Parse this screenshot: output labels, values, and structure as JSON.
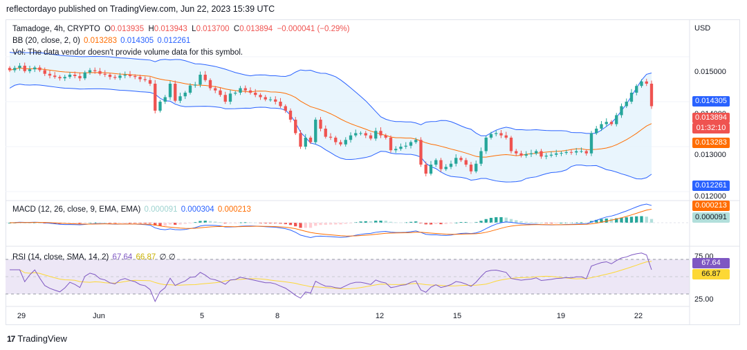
{
  "header": {
    "published": "reflectordayo published on TradingView.com, Jun 22, 2023 15:39 UTC"
  },
  "symbol": {
    "title": "Tamadoge, 4h, CRYPTO",
    "o_label": "O",
    "o": "0.013935",
    "h_label": "H",
    "h": "0.013943",
    "l_label": "L",
    "l": "0.013700",
    "c_label": "C",
    "c": "0.013894",
    "change": "−0.000041 (−0.29%)"
  },
  "bb_legend": {
    "title": "BB (20, close, 2, 0)",
    "basis": "0.013283",
    "upper": "0.014305",
    "lower": "0.012261"
  },
  "vol_legend": {
    "text": "Vol: The data vendor doesn't provide volume data for this symbol."
  },
  "macd_legend": {
    "title": "MACD (12, 26, close, 9, EMA, EMA)",
    "hist": "0.000091",
    "macd": "0.000304",
    "signal": "0.000213"
  },
  "rsi_legend": {
    "title": "RSI (14, close, SMA, 14, 2)",
    "rsi": "67.64",
    "sma": "66.87",
    "extra": "∅ ∅"
  },
  "axis": {
    "currency": "USD",
    "price_labels": [
      "0.015000",
      "0.014000",
      "0.013000",
      "0.012000"
    ],
    "rsi_labels": [
      "75.00",
      "25.00"
    ],
    "x_labels": [
      "29",
      "Jun",
      "5",
      "8",
      "12",
      "15",
      "19",
      "22"
    ]
  },
  "tags": {
    "upper": "0.014305",
    "close": "0.013894",
    "countdown": "01:32:10",
    "basis": "0.013283",
    "lower": "0.012261",
    "macd_signal": "0.000213",
    "macd_hist": "0.000091",
    "rsi": "67.64",
    "rsi_sma": "66.87"
  },
  "colors": {
    "up": "#26a69a",
    "down": "#ef5350",
    "bb_upper": "#2962ff",
    "bb_lower": "#2962ff",
    "bb_basis": "#ff6d00",
    "bb_fill": "#e3f2fd",
    "macd": "#2962ff",
    "signal": "#ff6d00",
    "rsi": "#7e57c2",
    "rsi_sma": "#fdd835",
    "rsi_band": "#ede7f6"
  },
  "chart_data": {
    "type": "candlestick",
    "timeframe": "4h",
    "ylim": [
      0.0118,
      0.0158
    ],
    "price_close": [
      0.0147,
      0.01475,
      0.0148,
      0.01468,
      0.01472,
      0.01476,
      0.0147,
      0.01462,
      0.01458,
      0.01455,
      0.01452,
      0.01455,
      0.0146,
      0.01457,
      0.01452,
      0.01465,
      0.0147,
      0.01468,
      0.01462,
      0.0146,
      0.01455,
      0.01453,
      0.01458,
      0.0146,
      0.01457,
      0.01455,
      0.0145,
      0.01448,
      0.0144,
      0.0138,
      0.014,
      0.0141,
      0.0144,
      0.01402,
      0.01412,
      0.0142,
      0.01436,
      0.01438,
      0.0146,
      0.01448,
      0.0143,
      0.01425,
      0.01415,
      0.014,
      0.01418,
      0.0142,
      0.0143,
      0.01425,
      0.0142,
      0.01415,
      0.0141,
      0.01405,
      0.01405,
      0.014,
      0.0139,
      0.0138,
      0.0136,
      0.0133,
      0.013,
      0.0132,
      0.0131,
      0.0136,
      0.0134,
      0.01322,
      0.0132,
      0.0131,
      0.01305,
      0.01315,
      0.01325,
      0.0133,
      0.0133,
      0.01325,
      0.01318,
      0.01335,
      0.01325,
      0.0132,
      0.01292,
      0.01295,
      0.013,
      0.01302,
      0.0131,
      0.01315,
      0.0126,
      0.0124,
      0.0126,
      0.0127,
      0.0125,
      0.01255,
      0.01262,
      0.01275,
      0.0127,
      0.0126,
      0.01245,
      0.01262,
      0.0129,
      0.0132,
      0.01328,
      0.0133,
      0.01325,
      0.0132,
      0.0129,
      0.01285,
      0.0128,
      0.01283,
      0.01285,
      0.0129,
      0.01278,
      0.0128,
      0.01282,
      0.01285,
      0.01286,
      0.01288,
      0.01287,
      0.0129,
      0.0129,
      0.01285,
      0.0133,
      0.0134,
      0.0135,
      0.01355,
      0.0135,
      0.0137,
      0.0139,
      0.014,
      0.0142,
      0.01435,
      0.01445,
      0.0144,
      0.0139
    ],
    "bb": {
      "basis_last": 0.013283,
      "upper_last": 0.014305,
      "lower_last": 0.012261
    },
    "macd": {
      "macd_last": 0.000304,
      "signal_last": 0.000213,
      "hist_last": 9.1e-05
    },
    "rsi": {
      "rsi_last": 67.64,
      "sma_last": 66.87,
      "upper_band": 75,
      "lower_band": 25
    }
  }
}
